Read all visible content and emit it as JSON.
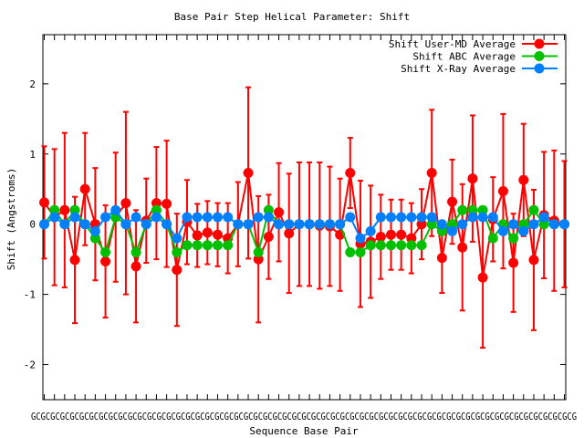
{
  "chart_data": {
    "type": "line",
    "title": "Base Pair Step Helical Parameter: Shift",
    "xlabel": "Sequence Base Pair",
    "ylabel": "Shift (Angstroms)",
    "ylim": [
      -2.5,
      2.7
    ],
    "yticks": [
      -2,
      -1,
      0,
      1,
      2
    ],
    "grid": false,
    "legend_position": "top-right",
    "x": [
      1,
      2,
      3,
      4,
      5,
      6,
      7,
      8,
      9,
      10,
      11,
      12,
      13,
      14,
      15,
      16,
      17,
      18,
      19,
      20,
      21,
      22,
      23,
      24,
      25,
      26,
      27,
      28,
      29,
      30,
      31,
      32,
      33,
      34,
      35,
      36,
      37,
      38,
      39,
      40,
      41,
      42,
      43,
      44,
      45,
      46,
      47,
      48,
      49,
      50,
      51,
      52
    ],
    "x_tick_labels": "GCGCGCGCGCGCGCGCGCGCGCGCGCGCGCGCGCGCGCGCGCGCGCGCGCGCGCGCGCGCGCGCGCGCGCGCGCGCGCGCGCGCGCGCGCGCGCGCGCGCGCGCGCGCGCGCG",
    "series": [
      {
        "name": "Shift User-MD Average",
        "color": "#ff0000",
        "values": [
          0.31,
          0.1,
          0.2,
          -0.51,
          0.5,
          0.0,
          -0.53,
          0.1,
          0.3,
          -0.6,
          0.05,
          0.3,
          0.29,
          -0.65,
          0.03,
          -0.16,
          -0.12,
          -0.15,
          -0.2,
          0.0,
          0.73,
          -0.5,
          -0.18,
          0.17,
          -0.13,
          0.0,
          0.0,
          -0.02,
          -0.03,
          -0.15,
          0.73,
          -0.28,
          -0.25,
          -0.18,
          -0.15,
          -0.15,
          -0.2,
          0.0,
          0.73,
          -0.48,
          0.32,
          -0.33,
          0.65,
          -0.76,
          0.07,
          0.47,
          -0.55,
          0.63,
          -0.51,
          0.13,
          0.05,
          0.0
        ],
        "errors": [
          0.8,
          0.97,
          1.1,
          0.9,
          0.8,
          0.8,
          0.8,
          0.92,
          1.3,
          0.8,
          0.6,
          0.8,
          0.9,
          0.8,
          0.6,
          0.45,
          0.45,
          0.45,
          0.5,
          0.6,
          1.22,
          0.9,
          0.6,
          0.7,
          0.85,
          0.88,
          0.88,
          0.9,
          0.85,
          0.8,
          0.5,
          0.9,
          0.8,
          0.6,
          0.5,
          0.5,
          0.5,
          0.5,
          0.9,
          0.5,
          0.6,
          0.9,
          0.9,
          1.0,
          0.6,
          1.1,
          0.7,
          0.8,
          1.0,
          0.9,
          1.0,
          0.9
        ]
      },
      {
        "name": "Shift ABC Average",
        "color": "#00c000",
        "values": [
          0.0,
          0.2,
          0.0,
          0.2,
          0.0,
          -0.2,
          -0.4,
          0.1,
          0.0,
          -0.4,
          0.0,
          0.2,
          0.0,
          -0.4,
          -0.3,
          -0.3,
          -0.3,
          -0.3,
          -0.3,
          0.0,
          0.0,
          -0.4,
          0.2,
          0.0,
          0.0,
          0.0,
          0.0,
          0.0,
          0.0,
          0.0,
          -0.4,
          -0.4,
          -0.3,
          -0.3,
          -0.3,
          -0.3,
          -0.3,
          -0.3,
          0.0,
          -0.1,
          0.0,
          0.2,
          0.2,
          0.2,
          -0.2,
          0.0,
          -0.2,
          0.0,
          0.2,
          0.0,
          0.0,
          0.0
        ]
      },
      {
        "name": "Shift X-Ray Average",
        "color": "#0080ff",
        "values": [
          0.0,
          0.1,
          0.0,
          0.1,
          0.0,
          -0.1,
          0.1,
          0.2,
          0.0,
          0.1,
          0.0,
          0.1,
          0.0,
          -0.2,
          0.1,
          0.1,
          0.1,
          0.1,
          0.1,
          0.0,
          0.0,
          0.1,
          0.1,
          0.0,
          0.0,
          0.0,
          0.0,
          0.0,
          0.0,
          0.0,
          0.1,
          -0.2,
          -0.1,
          0.1,
          0.1,
          0.1,
          0.1,
          0.1,
          0.1,
          0.0,
          -0.1,
          0.0,
          0.1,
          0.1,
          0.1,
          -0.1,
          0.0,
          -0.1,
          0.0,
          0.1,
          0.0,
          0.0
        ]
      }
    ]
  }
}
